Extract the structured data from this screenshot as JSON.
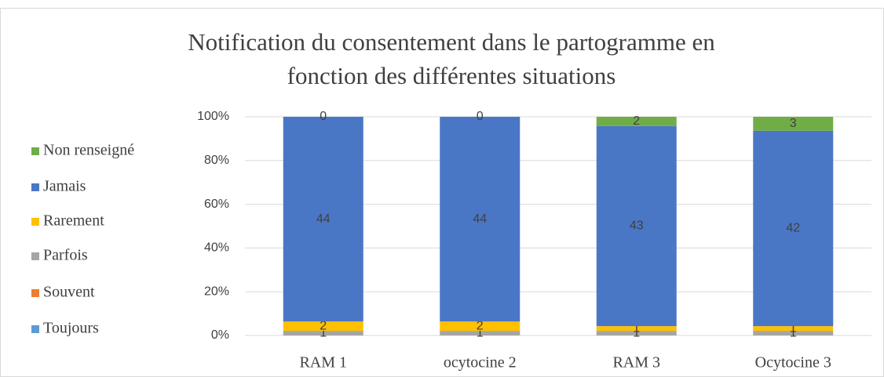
{
  "chart_data": {
    "type": "stacked_percent_bar",
    "title": [
      "Notification du consentement dans le partogramme en",
      "fonction des différentes situations"
    ],
    "categories": [
      "RAM 1",
      "ocytocine 2",
      "RAM 3",
      "Ocytocine 3"
    ],
    "series": [
      {
        "name": "Toujours",
        "color": "#5b9bd5",
        "values": [
          0,
          0,
          0,
          0
        ],
        "labels": false
      },
      {
        "name": "Souvent",
        "color": "#ed7d31",
        "values": [
          0,
          0,
          0,
          0
        ],
        "labels": false
      },
      {
        "name": "Parfois",
        "color": "#a5a5a5",
        "values": [
          1,
          1,
          1,
          1
        ],
        "labels": true
      },
      {
        "name": "Rarement",
        "color": "#ffc000",
        "values": [
          2,
          2,
          1,
          1
        ],
        "labels": true
      },
      {
        "name": "Jamais",
        "color": "#4a76c6",
        "values": [
          44,
          44,
          43,
          42
        ],
        "labels": true
      },
      {
        "name": "Non renseigné",
        "color": "#70ad47",
        "values": [
          0,
          0,
          2,
          3
        ],
        "labels": true
      }
    ],
    "ylim": [
      0,
      100
    ],
    "yticks": [
      {
        "value": 0,
        "label": "0%"
      },
      {
        "value": 20,
        "label": "20%"
      },
      {
        "value": 40,
        "label": "40%"
      },
      {
        "value": 60,
        "label": "60%"
      },
      {
        "value": 80,
        "label": "80%"
      },
      {
        "value": 100,
        "label": "100%"
      }
    ],
    "grid": true,
    "legend": "left"
  }
}
